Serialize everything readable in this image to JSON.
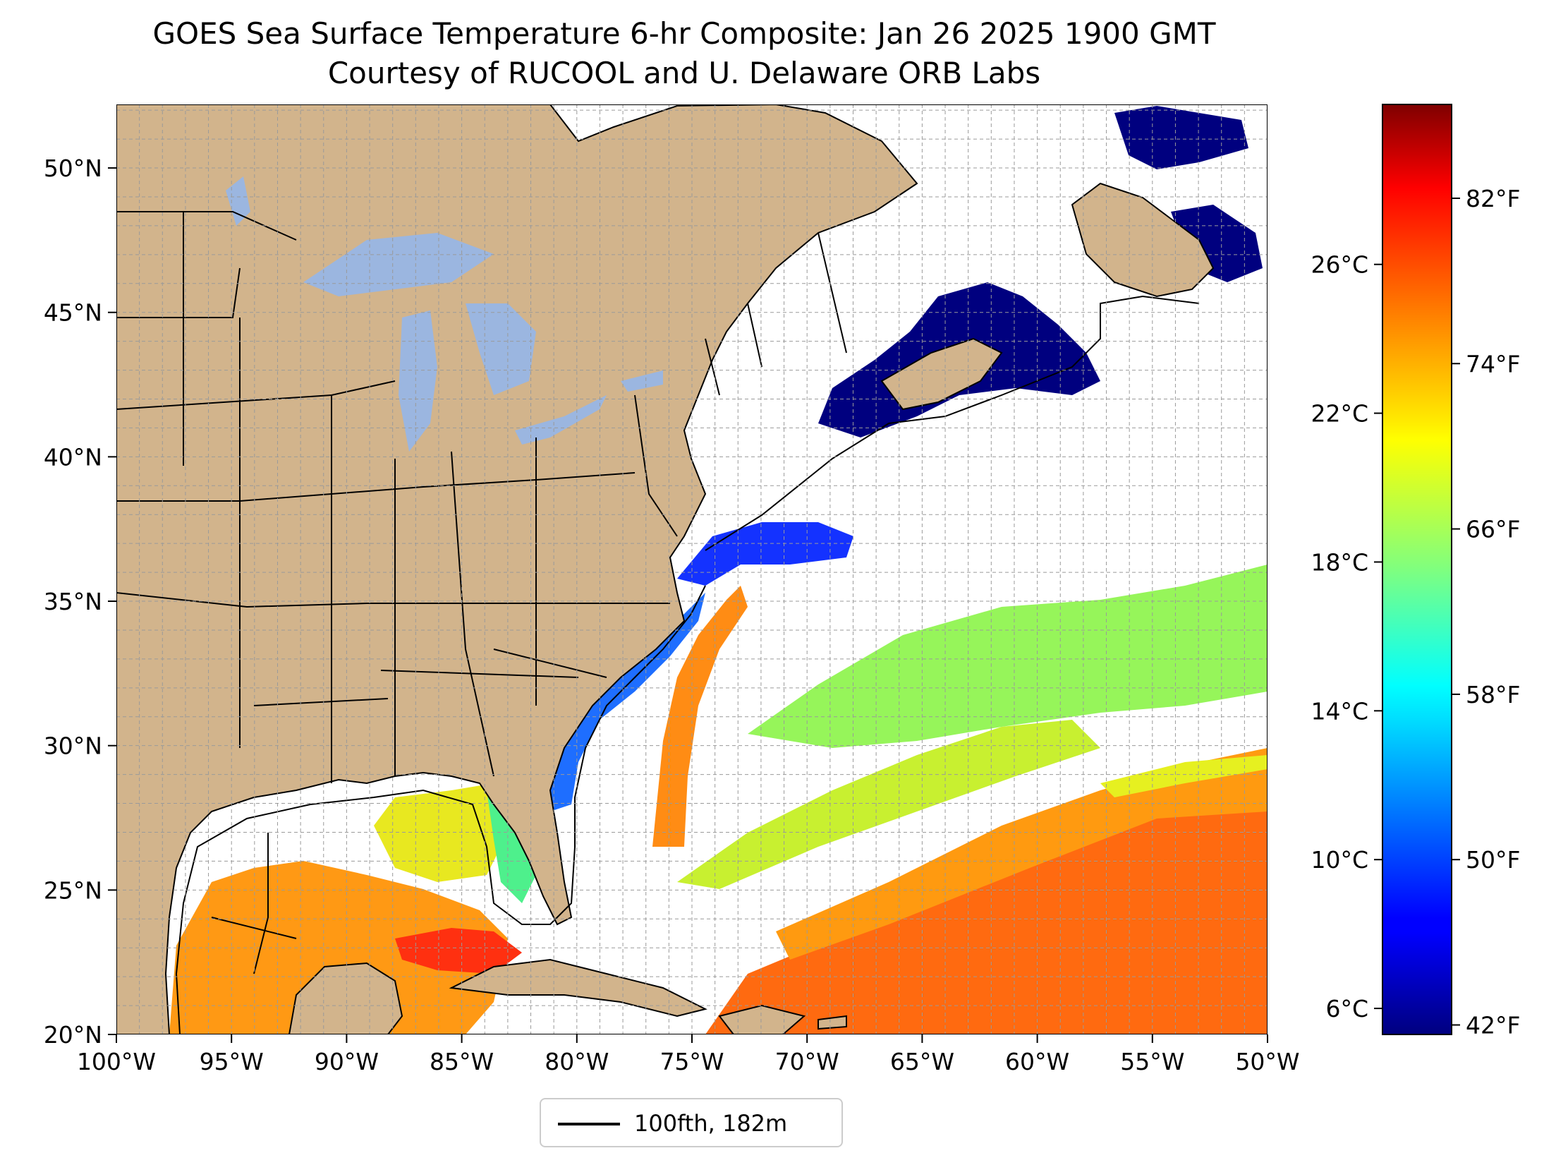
{
  "title": {
    "line1": "GOES Sea Surface Temperature 6-hr Composite: Jan 26 2025 1900 GMT",
    "line2": "Courtesy of RUCOOL and U. Delaware ORB Labs"
  },
  "map": {
    "extent": {
      "lon_min": -100,
      "lon_max": -50,
      "lat_min": 20,
      "lat_max": 52.2
    },
    "latitude_ticks": [
      {
        "value": 20,
        "label": "20°N"
      },
      {
        "value": 25,
        "label": "25°N"
      },
      {
        "value": 30,
        "label": "30°N"
      },
      {
        "value": 35,
        "label": "35°N"
      },
      {
        "value": 40,
        "label": "40°N"
      },
      {
        "value": 45,
        "label": "45°N"
      },
      {
        "value": 50,
        "label": "50°N"
      }
    ],
    "longitude_ticks": [
      {
        "value": -100,
        "label": "100°W"
      },
      {
        "value": -95,
        "label": "95°W"
      },
      {
        "value": -90,
        "label": "90°W"
      },
      {
        "value": -85,
        "label": "85°W"
      },
      {
        "value": -80,
        "label": "80°W"
      },
      {
        "value": -75,
        "label": "75°W"
      },
      {
        "value": -70,
        "label": "70°W"
      },
      {
        "value": -65,
        "label": "65°W"
      },
      {
        "value": -60,
        "label": "60°W"
      },
      {
        "value": -55,
        "label": "55°W"
      },
      {
        "value": -50,
        "label": "50°W"
      }
    ],
    "grid": "dashed, 1° spacing",
    "colors": {
      "land": "#d2b48c",
      "lakes": "#9bb6e0",
      "ocean_no_data": "#ffffff",
      "borders": "#000000"
    }
  },
  "colorbar": {
    "colormap": "jet",
    "celsius_range": [
      5.3,
      30.3
    ],
    "celsius_ticks": [
      {
        "value": 6,
        "label": "6°C"
      },
      {
        "value": 10,
        "label": "10°C"
      },
      {
        "value": 14,
        "label": "14°C"
      },
      {
        "value": 18,
        "label": "18°C"
      },
      {
        "value": 22,
        "label": "22°C"
      },
      {
        "value": 26,
        "label": "26°C"
      }
    ],
    "fahrenheit_ticks": [
      {
        "value": 42,
        "label": "42°F"
      },
      {
        "value": 50,
        "label": "50°F"
      },
      {
        "value": 58,
        "label": "58°F"
      },
      {
        "value": 66,
        "label": "66°F"
      },
      {
        "value": 74,
        "label": "74°F"
      },
      {
        "value": 82,
        "label": "82°F"
      }
    ]
  },
  "legend": {
    "label": "100fth, 182m",
    "line_color": "#000000"
  }
}
